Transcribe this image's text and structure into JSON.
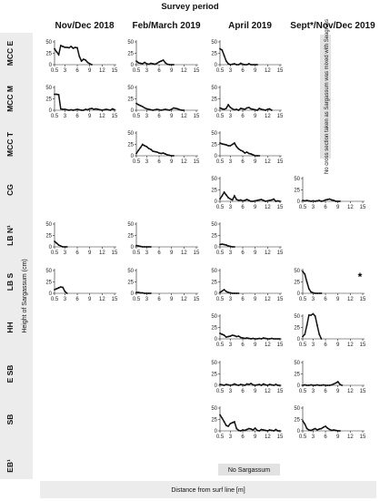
{
  "chart_data": {
    "type": "line",
    "title": "Survey period",
    "xlabel": "Distance from surf line [m]",
    "ylabel": "Height of Sargassum (cm)",
    "x_ticks": [
      "0.5",
      "3",
      "6",
      "9",
      "12",
      "15"
    ],
    "y_ticks": [
      "0",
      "25",
      "50"
    ],
    "ylim": [
      0,
      50
    ],
    "columns": [
      "Nov/Dec 2018",
      "Feb/March 2019",
      "April 2019",
      "Sept*/Nov/Dec 2019"
    ],
    "rows": [
      "MCC E",
      "MCC M",
      "MCC T",
      "CG",
      "LB N¹",
      "LB S",
      "HH",
      "E SB",
      "SB",
      "EB¹"
    ],
    "notes": {
      "no_cross_section": "No cross section taken as Sargassum was mixed with Seagrass",
      "no_sargassum": "No Sargassum",
      "asterisk": "*"
    },
    "panels": [
      {
        "row": "MCC E",
        "column": "Nov/Dec 2018",
        "x": [
          0.5,
          1,
          1.5,
          2,
          2.5,
          3,
          3.5,
          4,
          4.5,
          5,
          5.5,
          6,
          6.5,
          7,
          7.5,
          8,
          8.5,
          9,
          9.5
        ],
        "y": [
          35,
          28,
          22,
          42,
          40,
          38,
          38,
          37,
          40,
          36,
          38,
          37,
          18,
          8,
          12,
          10,
          5,
          2,
          0
        ]
      },
      {
        "row": "MCC M",
        "column": "Nov/Dec 2018",
        "x": [
          0.5,
          1,
          1.5,
          2,
          2.5,
          3,
          3.5,
          4,
          4.5,
          5,
          5.5,
          6,
          6.5,
          7,
          7.5,
          8,
          8.5,
          9,
          9.5,
          10,
          10.5,
          11,
          11.5,
          12,
          12.5,
          13,
          13.5,
          14,
          14.5,
          15
        ],
        "y": [
          35,
          35,
          34,
          3,
          2,
          2,
          1,
          0,
          1,
          0,
          1,
          2,
          1,
          0,
          0,
          2,
          1,
          3,
          4,
          2,
          3,
          2,
          1,
          0,
          1,
          2,
          1,
          0,
          3,
          1
        ]
      },
      {
        "row": "LB N¹",
        "column": "Nov/Dec 2018",
        "x": [
          0.5,
          1,
          1.5,
          2,
          2.5,
          3,
          3.5
        ],
        "y": [
          12,
          8,
          4,
          2,
          0,
          0,
          0
        ]
      },
      {
        "row": "LB S",
        "column": "Nov/Dec 2018",
        "x": [
          0.5,
          1,
          1.5,
          2,
          2.5,
          3,
          3.5
        ],
        "y": [
          8,
          10,
          12,
          14,
          13,
          4,
          0
        ]
      },
      {
        "row": "MCC E",
        "column": "Feb/March 2019",
        "x": [
          0.5,
          1,
          1.5,
          2,
          2.5,
          3,
          3.5,
          4,
          4.5,
          5,
          5.5,
          6,
          6.5,
          7,
          7.5,
          8,
          8.5,
          9,
          9.5
        ],
        "y": [
          8,
          4,
          3,
          2,
          5,
          2,
          1,
          3,
          2,
          1,
          3,
          6,
          8,
          10,
          4,
          1,
          0,
          0,
          0
        ]
      },
      {
        "row": "MCC M",
        "column": "Feb/March 2019",
        "x": [
          0.5,
          1,
          1.5,
          2,
          2.5,
          3,
          3.5,
          4,
          4.5,
          5,
          5.5,
          6,
          6.5,
          7,
          7.5,
          8,
          8.5,
          9,
          9.5,
          10,
          10.5,
          11,
          11.5,
          12
        ],
        "y": [
          15,
          12,
          10,
          8,
          5,
          3,
          2,
          1,
          0,
          1,
          2,
          1,
          0,
          1,
          2,
          1,
          0,
          2,
          5,
          4,
          3,
          1,
          0,
          0
        ]
      },
      {
        "row": "MCC T",
        "column": "Feb/March 2019",
        "x": [
          0.5,
          1,
          1.5,
          2,
          2.5,
          3,
          3.5,
          4,
          4.5,
          5,
          5.5,
          6,
          6.5,
          7,
          7.5,
          8,
          8.5,
          9,
          9.5
        ],
        "y": [
          5,
          12,
          18,
          25,
          22,
          20,
          16,
          14,
          10,
          9,
          8,
          6,
          5,
          6,
          4,
          2,
          1,
          0,
          0
        ]
      },
      {
        "row": "LB N¹",
        "column": "Feb/March 2019",
        "x": [
          0.5,
          1,
          1.5,
          2,
          2.5,
          3,
          3.5,
          4
        ],
        "y": [
          3,
          2,
          1,
          0,
          0,
          0,
          0,
          0
        ]
      },
      {
        "row": "LB S",
        "column": "Feb/March 2019",
        "x": [
          0.5,
          1,
          1.5,
          2,
          2.5,
          3,
          3.5,
          4
        ],
        "y": [
          2,
          2,
          1,
          1,
          0,
          0,
          0,
          0
        ]
      },
      {
        "row": "MCC E",
        "column": "April 2019",
        "x": [
          0.5,
          1,
          1.5,
          2,
          2.5,
          3,
          3.5,
          4,
          4.5,
          5,
          5.5,
          6,
          6.5,
          7,
          7.5,
          8,
          8.5,
          9,
          9.5
        ],
        "y": [
          35,
          32,
          20,
          8,
          2,
          0,
          1,
          2,
          0,
          0,
          3,
          1,
          0,
          0,
          2,
          0,
          0,
          0,
          0
        ]
      },
      {
        "row": "MCC M",
        "column": "April 2019",
        "x": [
          0.5,
          1,
          1.5,
          2,
          2.5,
          3,
          3.5,
          4,
          4.5,
          5,
          5.5,
          6,
          6.5,
          7,
          7.5,
          8,
          8.5,
          9,
          9.5,
          10,
          10.5,
          11,
          11.5,
          12,
          12.5,
          13
        ],
        "y": [
          5,
          3,
          2,
          4,
          12,
          6,
          3,
          1,
          2,
          0,
          4,
          3,
          2,
          5,
          6,
          3,
          2,
          1,
          0,
          4,
          2,
          1,
          0,
          2,
          3,
          0
        ],
        "y_note": "approximate"
      },
      {
        "row": "MCC T",
        "column": "April 2019",
        "x": [
          0.5,
          1,
          1.5,
          2,
          2.5,
          3,
          3.5,
          4,
          4.5,
          5,
          5.5,
          6,
          6.5,
          7,
          7.5,
          8,
          8.5,
          9,
          9.5,
          10
        ],
        "y": [
          28,
          26,
          25,
          24,
          22,
          22,
          25,
          28,
          20,
          15,
          12,
          10,
          6,
          8,
          5,
          4,
          2,
          0,
          0,
          0
        ]
      },
      {
        "row": "CG",
        "column": "April 2019",
        "x": [
          0.5,
          1,
          1.5,
          2,
          2.5,
          3,
          3.5,
          4,
          4.5,
          5,
          5.5,
          6,
          6.5,
          7,
          7.5,
          8,
          8.5,
          9,
          9.5,
          10,
          10.5,
          11,
          11.5,
          12,
          12.5,
          13,
          13.5,
          14,
          14.5,
          15
        ],
        "y": [
          5,
          12,
          20,
          14,
          8,
          5,
          3,
          12,
          4,
          2,
          3,
          1,
          2,
          4,
          2,
          0,
          0,
          1,
          2,
          3,
          4,
          2,
          0,
          1,
          2,
          3,
          5,
          0,
          1,
          0
        ]
      },
      {
        "row": "LB N¹",
        "column": "April 2019",
        "x": [
          0.5,
          1,
          1.5,
          2,
          2.5,
          3,
          3.5,
          4
        ],
        "y": [
          5,
          6,
          5,
          4,
          2,
          1,
          0,
          0
        ]
      },
      {
        "row": "LB S",
        "column": "April 2019",
        "x": [
          0.5,
          1,
          1.5,
          2,
          2.5,
          3,
          3.5,
          4,
          4.5,
          5
        ],
        "y": [
          2,
          5,
          8,
          4,
          2,
          1,
          0,
          0,
          0,
          0
        ]
      },
      {
        "row": "HH",
        "column": "April 2019",
        "x": [
          0.5,
          1,
          1.5,
          2,
          2.5,
          3,
          3.5,
          4,
          4.5,
          5,
          5.5,
          6,
          6.5,
          7,
          7.5,
          8,
          8.5,
          9,
          9.5,
          10,
          10.5,
          11,
          11.5,
          12,
          12.5,
          13,
          13.5,
          14,
          14.5,
          15
        ],
        "y": [
          12,
          10,
          8,
          4,
          5,
          6,
          8,
          7,
          5,
          6,
          3,
          2,
          1,
          2,
          1,
          0,
          1,
          0,
          0,
          1,
          0,
          2,
          1,
          0,
          0,
          1,
          0,
          0,
          0,
          0
        ]
      },
      {
        "row": "E SB",
        "column": "April 2019",
        "x": [
          0.5,
          1,
          1.5,
          2,
          2.5,
          3,
          3.5,
          4,
          4.5,
          5,
          5.5,
          6,
          6.5,
          7,
          7.5,
          8,
          8.5,
          9,
          9.5,
          10,
          10.5,
          11,
          11.5,
          12,
          12.5,
          13,
          13.5,
          14,
          14.5,
          15
        ],
        "y": [
          2,
          1,
          0,
          2,
          1,
          0,
          1,
          3,
          1,
          0,
          2,
          1,
          0,
          3,
          2,
          4,
          1,
          0,
          1,
          2,
          0,
          3,
          1,
          0,
          2,
          1,
          0,
          2,
          0,
          0
        ]
      },
      {
        "row": "SB",
        "column": "April 2019",
        "x": [
          0.5,
          1,
          1.5,
          2,
          2.5,
          3,
          3.5,
          4,
          4.5,
          5,
          5.5,
          6,
          6.5,
          7,
          7.5,
          8,
          8.5,
          9,
          9.5,
          10,
          10.5,
          11,
          11.5,
          12,
          12.5,
          13,
          13.5,
          14,
          14.5,
          15
        ],
        "y": [
          35,
          28,
          20,
          12,
          10,
          16,
          18,
          20,
          5,
          1,
          0,
          2,
          1,
          3,
          5,
          4,
          2,
          6,
          1,
          0,
          3,
          2,
          1,
          0,
          2,
          1,
          0,
          3,
          0,
          0
        ]
      },
      {
        "row": "CG",
        "column": "Sept*/Nov/Dec 2019",
        "x": [
          0.5,
          1,
          1.5,
          2,
          2.5,
          3,
          3.5,
          4,
          4.5,
          5,
          5.5,
          6,
          6.5,
          7,
          7.5,
          8,
          8.5,
          9,
          9.5
        ],
        "y": [
          2,
          1,
          2,
          1,
          0,
          1,
          0,
          1,
          2,
          0,
          1,
          3,
          4,
          5,
          3,
          2,
          0,
          0,
          0
        ]
      },
      {
        "row": "LB S",
        "column": "Sept*/Nov/Dec 2019",
        "x": [
          0.5,
          1,
          1.5,
          2,
          2.5,
          3,
          3.5,
          4,
          4.5,
          5
        ],
        "y": [
          48,
          42,
          25,
          10,
          3,
          1,
          0,
          0,
          0,
          0
        ]
      },
      {
        "row": "HH",
        "column": "Sept*/Nov/Dec 2019",
        "x": [
          0.5,
          1,
          1.5,
          2,
          2.5,
          3,
          3.5,
          4,
          4.5,
          5
        ],
        "y": [
          5,
          10,
          30,
          52,
          52,
          55,
          50,
          30,
          10,
          0
        ]
      },
      {
        "row": "E SB",
        "column": "Sept*/Nov/Dec 2019",
        "x": [
          0.5,
          1,
          1.5,
          2,
          2.5,
          3,
          3.5,
          4,
          4.5,
          5,
          5.5,
          6,
          6.5,
          7,
          7.5,
          8,
          8.5,
          9,
          9.5,
          10
        ],
        "y": [
          0,
          1,
          0,
          0,
          1,
          0,
          0,
          1,
          0,
          0,
          1,
          0,
          0,
          0,
          1,
          3,
          5,
          8,
          2,
          0
        ]
      },
      {
        "row": "SB",
        "column": "Sept*/Nov/Dec 2019",
        "x": [
          0.5,
          1,
          1.5,
          2,
          2.5,
          3,
          3.5,
          4,
          4.5,
          5,
          5.5,
          6,
          6.5,
          7,
          7.5,
          8,
          8.5,
          9,
          9.5
        ],
        "y": [
          22,
          15,
          5,
          2,
          1,
          3,
          5,
          2,
          4,
          5,
          8,
          10,
          6,
          3,
          1,
          2,
          1,
          0,
          0
        ]
      }
    ]
  }
}
